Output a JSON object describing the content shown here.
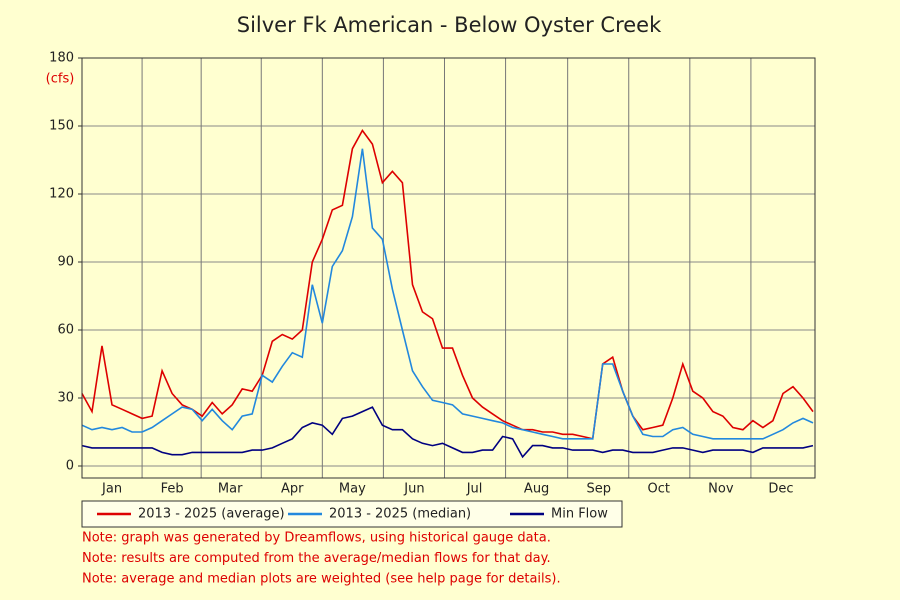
{
  "chart_data": {
    "type": "line",
    "title": "Silver Fk American - Below Oyster Creek",
    "y_label": "(cfs)",
    "x": [
      0,
      5,
      10,
      15,
      20,
      25,
      30,
      35,
      40,
      45,
      50,
      55,
      60,
      65,
      70,
      75,
      80,
      85,
      90,
      95,
      100,
      105,
      110,
      115,
      120,
      125,
      130,
      135,
      140,
      145,
      150,
      155,
      160,
      165,
      170,
      175,
      180,
      185,
      190,
      195,
      200,
      205,
      210,
      215,
      220,
      225,
      230,
      235,
      240,
      245,
      250,
      255,
      260,
      265,
      270,
      275,
      280,
      285,
      290,
      295,
      300,
      305,
      310,
      315,
      320,
      325,
      330,
      335,
      340,
      345,
      350,
      355,
      360,
      365
    ],
    "xlim": [
      0,
      366
    ],
    "xticks": [
      {
        "value": 15,
        "label": "Jan"
      },
      {
        "value": 45,
        "label": "Feb"
      },
      {
        "value": 74,
        "label": "Mar"
      },
      {
        "value": 105,
        "label": "Apr"
      },
      {
        "value": 135,
        "label": "May"
      },
      {
        "value": 166,
        "label": "Jun"
      },
      {
        "value": 196,
        "label": "Jul"
      },
      {
        "value": 227,
        "label": "Aug"
      },
      {
        "value": 258,
        "label": "Sep"
      },
      {
        "value": 288,
        "label": "Oct"
      },
      {
        "value": 319,
        "label": "Nov"
      },
      {
        "value": 349,
        "label": "Dec"
      }
    ],
    "ylim": [
      0,
      180
    ],
    "yticks": [
      0,
      30,
      60,
      90,
      120,
      150,
      180
    ],
    "grid": true,
    "series": [
      {
        "name": "2013 - 2025 (average)",
        "color": "#dd0000",
        "values": [
          32,
          24,
          53,
          27,
          25,
          23,
          21,
          22,
          42,
          32,
          27,
          25,
          22,
          28,
          23,
          27,
          34,
          33,
          40,
          55,
          58,
          56,
          60,
          90,
          100,
          113,
          115,
          140,
          148,
          142,
          125,
          130,
          125,
          80,
          68,
          65,
          52,
          52,
          40,
          30,
          26,
          23,
          20,
          18,
          16,
          16,
          15,
          15,
          14,
          14,
          13,
          12,
          45,
          48,
          33,
          22,
          16,
          17,
          18,
          30,
          45,
          33,
          30,
          24,
          22,
          17,
          16,
          20,
          17,
          20,
          32,
          35,
          30,
          24
        ]
      },
      {
        "name": "2013 - 2025 (median)",
        "color": "#2288dd",
        "values": [
          18,
          16,
          17,
          16,
          17,
          15,
          15,
          17,
          20,
          23,
          26,
          25,
          20,
          25,
          20,
          16,
          22,
          23,
          40,
          37,
          44,
          50,
          48,
          80,
          63,
          88,
          95,
          110,
          140,
          105,
          100,
          78,
          60,
          42,
          35,
          29,
          28,
          27,
          23,
          22,
          21,
          20,
          19,
          17,
          16,
          15,
          14,
          13,
          12,
          12,
          12,
          12,
          45,
          45,
          33,
          22,
          14,
          13,
          13,
          16,
          17,
          14,
          13,
          12,
          12,
          12,
          12,
          12,
          12,
          14,
          16,
          19,
          21,
          19
        ]
      },
      {
        "name": "Min Flow",
        "color": "#000080",
        "values": [
          9,
          8,
          8,
          8,
          8,
          8,
          8,
          8,
          6,
          5,
          5,
          6,
          6,
          6,
          6,
          6,
          6,
          7,
          7,
          8,
          10,
          12,
          17,
          19,
          18,
          14,
          21,
          22,
          24,
          26,
          18,
          16,
          16,
          12,
          10,
          9,
          10,
          8,
          6,
          6,
          7,
          7,
          13,
          12,
          4,
          9,
          9,
          8,
          8,
          7,
          7,
          7,
          6,
          7,
          7,
          6,
          6,
          6,
          7,
          8,
          8,
          7,
          6,
          7,
          7,
          7,
          7,
          6,
          8,
          8,
          8,
          8,
          8,
          9
        ]
      }
    ],
    "legend": "bottom",
    "notes": [
      "Note: graph was generated by Dreamflows, using historical gauge data.",
      "Note: results are computed from the average/median flows for that day.",
      "Note: average and median plots are weighted (see help page for details)."
    ]
  }
}
